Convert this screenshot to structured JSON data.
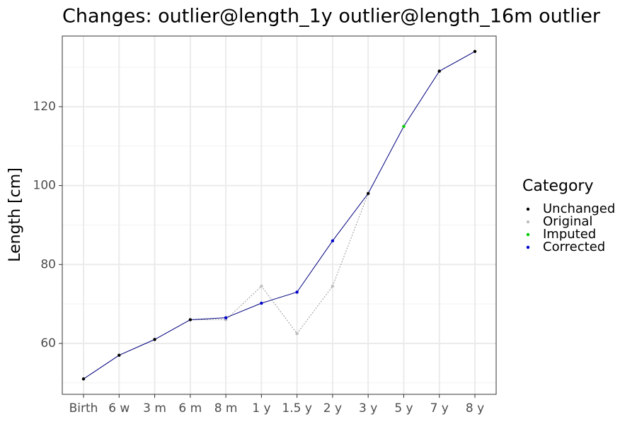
{
  "chart_data": {
    "type": "line",
    "title": "Changes: outlier@length_1y outlier@length_16m outlier",
    "y_label": "Length [cm]",
    "categories": [
      "Birth",
      "6 w",
      "3 m",
      "6 m",
      "8 m",
      "1 y",
      "1.5 y",
      "2 y",
      "3 y",
      "5 y",
      "7 y",
      "8 y"
    ],
    "ylim": [
      47.1,
      137.9
    ],
    "yticks": [
      60,
      80,
      100,
      120
    ],
    "yminor": [
      50,
      70,
      90,
      110,
      130
    ],
    "grid": true,
    "line_color": "#000080",
    "original_line_color": "#999999",
    "legend_title": "Category",
    "series": [
      {
        "name": "Unchanged",
        "color": "#000000",
        "values": [
          51,
          57,
          61,
          66,
          null,
          null,
          null,
          null,
          98,
          null,
          129,
          134
        ]
      },
      {
        "name": "Original",
        "color": "#bebebe",
        "values": [
          null,
          null,
          null,
          null,
          66,
          74.5,
          62.5,
          74.5,
          null,
          null,
          null,
          null
        ]
      },
      {
        "name": "Imputed",
        "color": "#00cd00",
        "values": [
          null,
          null,
          null,
          null,
          null,
          null,
          null,
          null,
          null,
          115,
          null,
          null
        ]
      },
      {
        "name": "Corrected",
        "color": "#0000cd",
        "values": [
          null,
          null,
          null,
          null,
          66.5,
          70.2,
          73,
          86,
          null,
          null,
          null,
          null
        ]
      }
    ]
  }
}
